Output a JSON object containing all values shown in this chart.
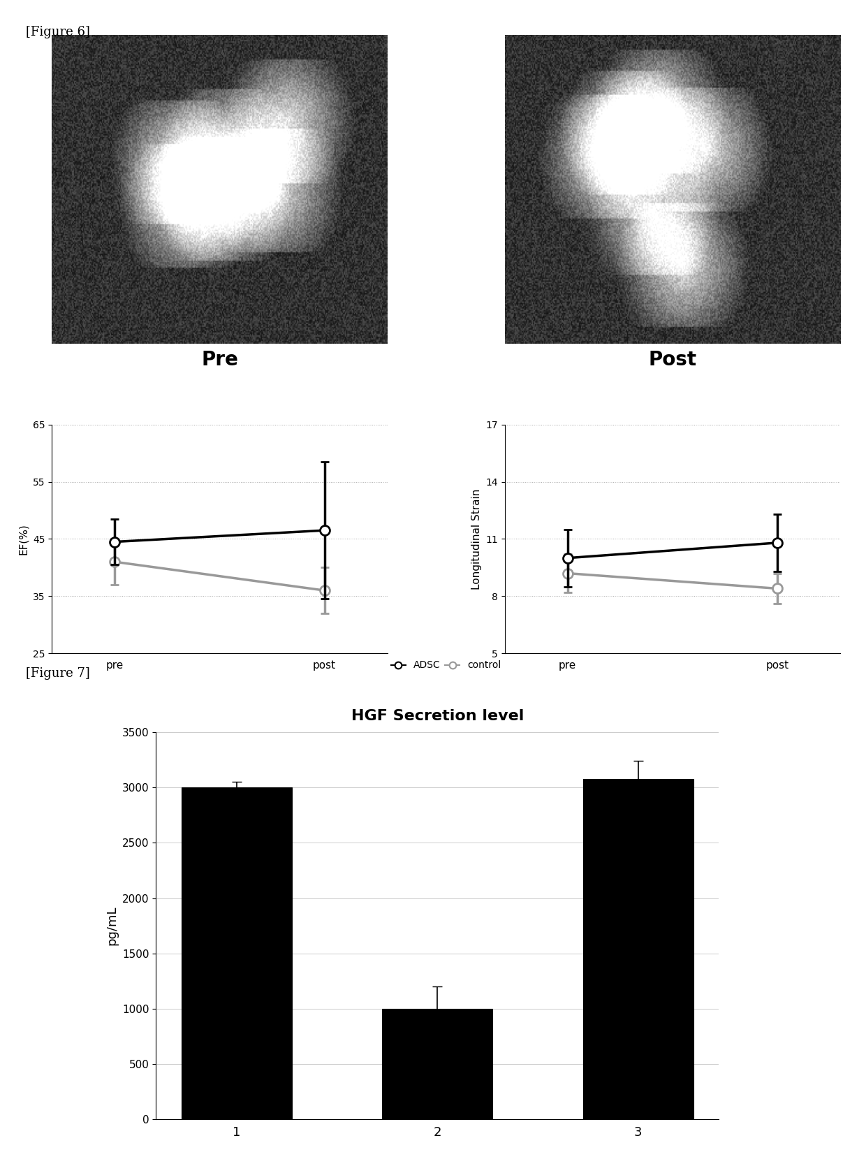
{
  "fig6_label": "[Figure 6]",
  "fig7_label": "[Figure 7]",
  "pre_label": "Pre",
  "post_label": "Post",
  "legend_adsc": "ADSC",
  "legend_control": "control",
  "ef_ylabel": "EF(%)",
  "ef_xlabel_pre": "pre",
  "ef_xlabel_post": "post",
  "ef_ylim": [
    25,
    65
  ],
  "ef_yticks": [
    25,
    35,
    45,
    55,
    65
  ],
  "ef_adsc_pre": 44.5,
  "ef_adsc_post": 46.5,
  "ef_adsc_pre_err_lo": 4.0,
  "ef_adsc_pre_err_hi": 4.0,
  "ef_adsc_post_err_lo": 12.0,
  "ef_adsc_post_err_hi": 12.0,
  "ef_control_pre": 41.0,
  "ef_control_post": 36.0,
  "ef_control_pre_err_lo": 4.0,
  "ef_control_pre_err_hi": 4.0,
  "ef_control_post_err_lo": 4.0,
  "ef_control_post_err_hi": 4.0,
  "ls_ylabel": "Longitudinal Strain",
  "ls_xlabel_pre": "pre",
  "ls_xlabel_post": "post",
  "ls_ylim": [
    5,
    17
  ],
  "ls_yticks": [
    5,
    8,
    11,
    14,
    17
  ],
  "ls_adsc_pre": 10.0,
  "ls_adsc_post": 10.8,
  "ls_adsc_pre_err": 1.5,
  "ls_adsc_post_err": 1.5,
  "ls_control_pre": 9.2,
  "ls_control_post": 8.4,
  "ls_control_pre_err": 1.0,
  "ls_control_post_err": 0.8,
  "bar_title": "HGF Secretion level",
  "bar_ylabel": "pg/mL",
  "bar_categories": [
    "1",
    "2",
    "3"
  ],
  "bar_values": [
    3000,
    1000,
    3080
  ],
  "bar_errors": [
    50,
    200,
    160
  ],
  "bar_color": "#000000",
  "bar_ylim": [
    0,
    3500
  ],
  "bar_yticks": [
    0,
    500,
    1000,
    1500,
    2000,
    2500,
    3000,
    3500
  ],
  "adsc_color": "#000000",
  "control_color": "#999999",
  "line_width": 2.5,
  "marker_size": 10
}
